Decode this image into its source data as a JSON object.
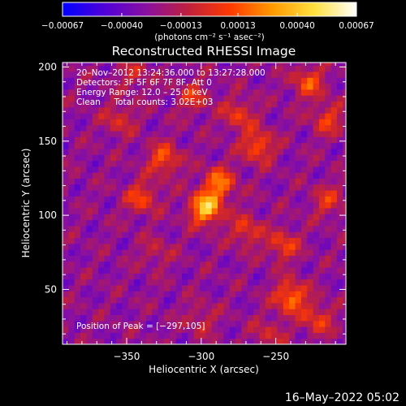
{
  "chart_data": {
    "type": "heatmap",
    "title": "Reconstructed RHESSI Image",
    "xlabel": "Heliocentric X (arcsec)",
    "ylabel": "Heliocentric Y (arcsec)",
    "xlim": [
      -393,
      -203
    ],
    "ylim": [
      13,
      203
    ],
    "xticks": [
      -350,
      -300,
      -250
    ],
    "xtick_labels": [
      "−350",
      "−300",
      "−250"
    ],
    "yticks": [
      50,
      100,
      150,
      200
    ],
    "ytick_labels": [
      "50",
      "100",
      "150",
      "200"
    ],
    "colorbar": {
      "range": [
        -0.00067,
        0.00067
      ],
      "ticks": [
        -0.00067,
        -0.0004,
        -0.00013,
        0.00013,
        0.0004,
        0.00067
      ],
      "tick_labels": [
        "−0.00067",
        "−0.00040",
        "−0.00013",
        "0.00013",
        "0.00040",
        "0.00067"
      ],
      "unit_label": "(photons cm⁻² s⁻¹ asec⁻²)",
      "colors": [
        "#0000ff",
        "#5000d8",
        "#8a10a0",
        "#c0203c",
        "#ff3a00",
        "#ff9a00",
        "#ffe040",
        "#ffffff"
      ]
    },
    "annotations": [
      "20–Nov–2012 13:24:36.000 to 13:27:28.000",
      "Detectors: 3F 5F 6F 7F 8F, Att 0",
      "Energy Range: 12.0 – 25.0 keV",
      "Clean     Total counts: 3.02E+03"
    ],
    "peak_label": "Position of Peak = [−297,105]",
    "peak": [
      -297,
      105
    ],
    "sources": [
      {
        "x": -297,
        "y": 105,
        "amp": 0.00067
      },
      {
        "x": -288,
        "y": 122,
        "amp": 0.00045
      },
      {
        "x": -262,
        "y": 147,
        "amp": 0.0004
      },
      {
        "x": -325,
        "y": 138,
        "amp": 0.00038
      },
      {
        "x": -340,
        "y": 112,
        "amp": 0.00034
      },
      {
        "x": -275,
        "y": 168,
        "amp": 0.0003
      },
      {
        "x": -228,
        "y": 190,
        "amp": 0.00036
      },
      {
        "x": -215,
        "y": 165,
        "amp": 0.0003
      },
      {
        "x": -270,
        "y": 90,
        "amp": 0.0003
      },
      {
        "x": -245,
        "y": 80,
        "amp": 0.00032
      },
      {
        "x": -240,
        "y": 45,
        "amp": 0.00048
      },
      {
        "x": -222,
        "y": 30,
        "amp": 0.0003
      },
      {
        "x": -305,
        "y": 180,
        "amp": 0.00026
      },
      {
        "x": -355,
        "y": 165,
        "amp": 0.00024
      },
      {
        "x": -345,
        "y": 195,
        "amp": 0.0002
      },
      {
        "x": -300,
        "y": 30,
        "amp": 0.00018
      },
      {
        "x": -330,
        "y": 75,
        "amp": 0.00016
      },
      {
        "x": -215,
        "y": 110,
        "amp": 0.00026
      },
      {
        "x": -255,
        "y": 20,
        "amp": 0.0002
      }
    ]
  },
  "footer": "16–May–2022 05:02"
}
